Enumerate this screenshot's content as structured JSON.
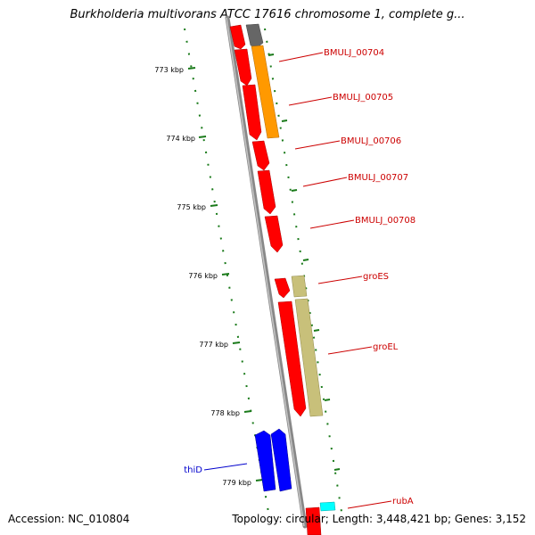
{
  "header": {
    "title": "Burkholderia multivorans ATCC 17616 chromosome 1, complete g..."
  },
  "footer": {
    "accession": "Accession: NC_010804",
    "summary": "Topology: circular; Length: 3,448,421 bp; Genes: 3,152"
  },
  "ticks": [
    {
      "label": "773 kbp"
    },
    {
      "label": "774 kbp"
    },
    {
      "label": "775 kbp"
    },
    {
      "label": "776 kbp"
    },
    {
      "label": "777 kbp"
    },
    {
      "label": "778 kbp"
    },
    {
      "label": "779 kbp"
    }
  ],
  "gene_labels": [
    {
      "name": "BMULJ_00704",
      "color": "#cc0000"
    },
    {
      "name": "BMULJ_00705",
      "color": "#cc0000"
    },
    {
      "name": "BMULJ_00706",
      "color": "#cc0000"
    },
    {
      "name": "BMULJ_00707",
      "color": "#cc0000"
    },
    {
      "name": "BMULJ_00708",
      "color": "#cc0000"
    },
    {
      "name": "groES",
      "color": "#cc0000"
    },
    {
      "name": "groEL",
      "color": "#cc0000"
    },
    {
      "name": "rubA",
      "color": "#cc0000"
    },
    {
      "name": "thiD",
      "color": "#0000cc"
    }
  ],
  "colors": {
    "cds_red": "#ff0000",
    "orange": "#ff9900",
    "khaki": "#c8c07a",
    "blue": "#0000ff",
    "gray": "#666666",
    "cyan": "#00ffff",
    "backbone": "#888888",
    "dots": "#1a7a1a"
  }
}
